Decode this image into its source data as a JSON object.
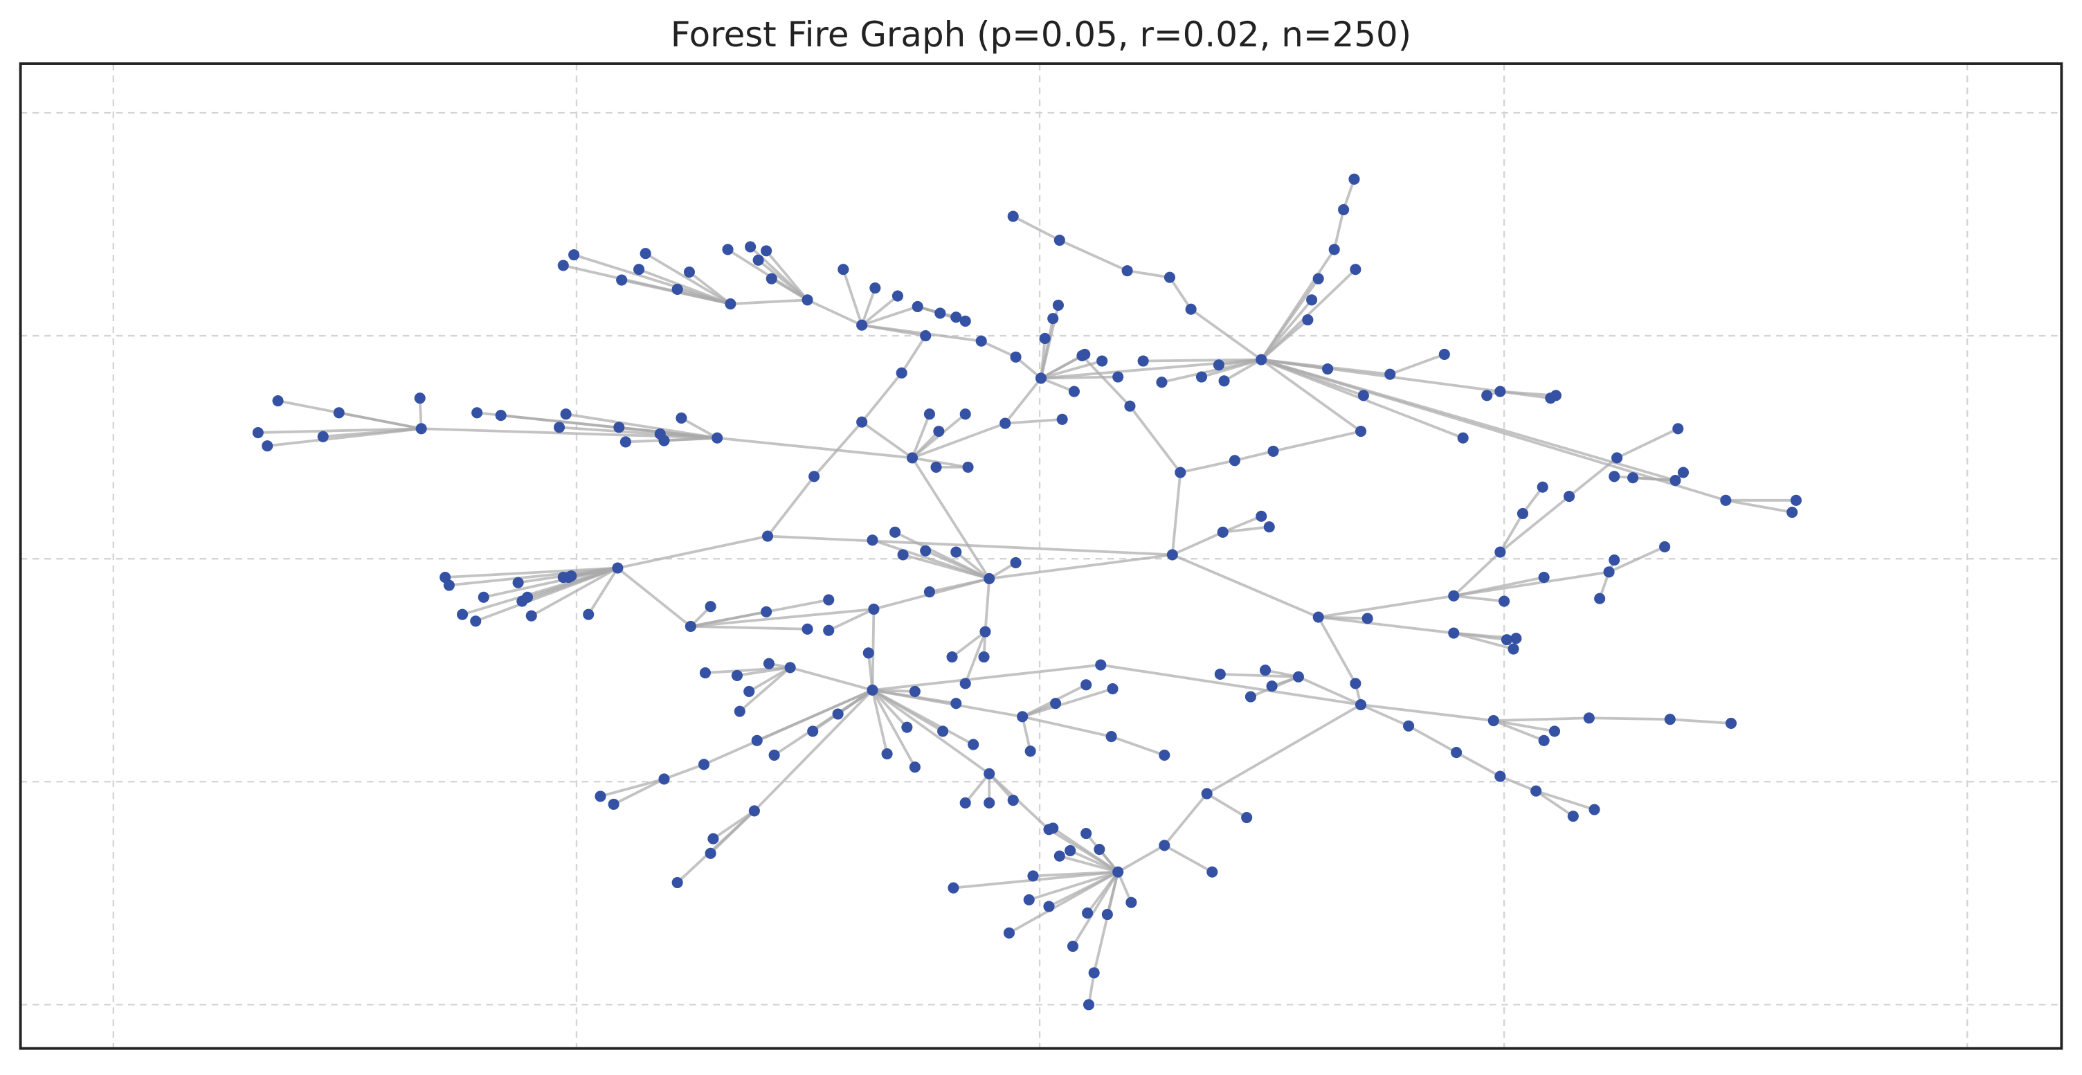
{
  "title": "Forest Fire Graph (p=0.05, r=0.02, n=250)"
}
